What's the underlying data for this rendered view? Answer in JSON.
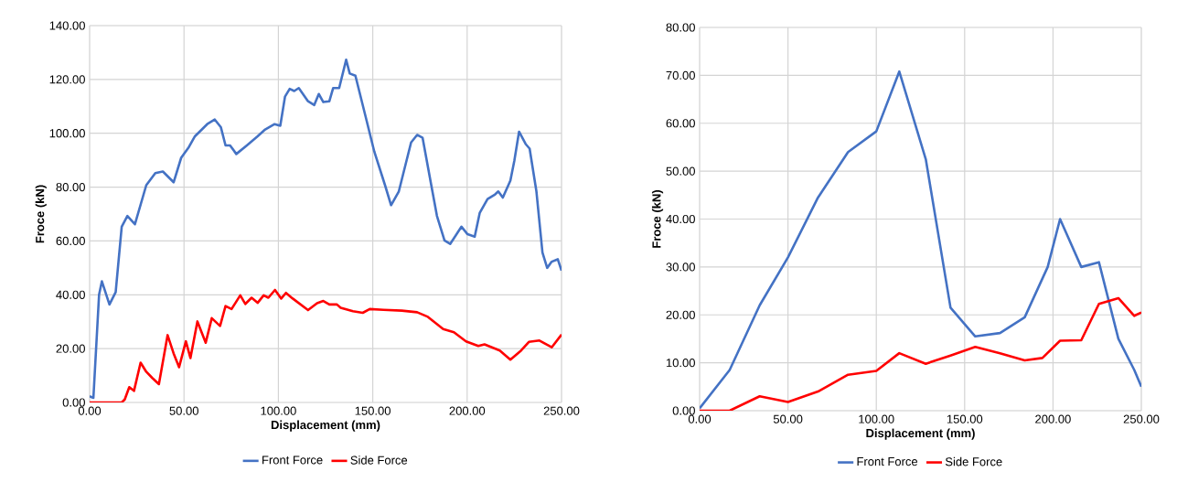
{
  "chart_data": [
    {
      "type": "line",
      "xlabel": "Displacement (mm)",
      "ylabel": "Froce (kN)",
      "grid": true,
      "legend": "bottom",
      "marker": "none",
      "line_style": "solid",
      "xlim": [
        0,
        250
      ],
      "ylim": [
        0,
        140
      ],
      "xticks": [
        {
          "value": 0,
          "label": "0.00"
        },
        {
          "value": 50,
          "label": "50.00"
        },
        {
          "value": 100,
          "label": "100.00"
        },
        {
          "value": 150,
          "label": "150.00"
        },
        {
          "value": 200,
          "label": "200.00"
        },
        {
          "value": 250,
          "label": "250.00"
        }
      ],
      "yticks": [
        {
          "value": 0,
          "label": "0.00"
        },
        {
          "value": 20,
          "label": "20.00"
        },
        {
          "value": 40,
          "label": "40.00"
        },
        {
          "value": 60,
          "label": "60.00"
        },
        {
          "value": 80,
          "label": "80.00"
        },
        {
          "value": 100,
          "label": "100.00"
        },
        {
          "value": 120,
          "label": "120.00"
        },
        {
          "value": 140,
          "label": "140.00"
        }
      ],
      "series": [
        {
          "name": "Front Force",
          "color": "#4472c4",
          "x": [
            0,
            2,
            5,
            6.5,
            10.5,
            13.8,
            17,
            20,
            24,
            30,
            34.8,
            38.8,
            44.5,
            48.5,
            52.6,
            55.8,
            62.3,
            66.3,
            69.5,
            72,
            74.4,
            77.7,
            83.3,
            89,
            93,
            98,
            101,
            103.5,
            106,
            108.4,
            110.8,
            115.7,
            119,
            121.4,
            123.8,
            127,
            129,
            132.2,
            135.9,
            137.8,
            140.8,
            146,
            150.8,
            156.5,
            159.7,
            163.8,
            170.3,
            173.5,
            176.4,
            181.6,
            184,
            188,
            191,
            197,
            200.2,
            204,
            206.7,
            210.8,
            214.8,
            216.5,
            218.9,
            222.9,
            225,
            227.5,
            231,
            233.1,
            236.7,
            239.9,
            242.4,
            244.8,
            248,
            250
          ],
          "values": [
            2.3,
            1.7,
            40,
            45,
            36.4,
            41,
            65.3,
            69.3,
            66.2,
            80.7,
            85.2,
            85.8,
            81.8,
            90.9,
            94.9,
            98.9,
            103.4,
            105.1,
            102.3,
            95.5,
            95.5,
            92.3,
            95.5,
            98.9,
            101.4,
            103.4,
            102.8,
            113.6,
            116.5,
            115.7,
            116.8,
            111.9,
            110.5,
            114.6,
            111.6,
            111.9,
            116.8,
            116.8,
            127.3,
            122.2,
            121.4,
            106.8,
            93.2,
            80.7,
            73.3,
            78.4,
            96.6,
            99.4,
            98.3,
            78.4,
            69.3,
            60.2,
            58.9,
            65.3,
            62.5,
            61.6,
            70.5,
            75.6,
            77.3,
            78.4,
            76.1,
            82.4,
            89.8,
            100.6,
            96,
            94.3,
            78.4,
            55.7,
            50,
            52.3,
            53.2,
            49
          ]
        },
        {
          "name": "Side Force",
          "color": "#ff0000",
          "x": [
            0,
            17,
            18.6,
            21,
            23.5,
            27,
            30,
            33.2,
            36.7,
            41.3,
            44.5,
            47.4,
            51,
            53.4,
            57.1,
            61.5,
            64.7,
            69.1,
            72,
            75.2,
            79.8,
            82.5,
            85.8,
            89,
            92.2,
            94.7,
            98.2,
            101.5,
            104,
            107.6,
            115.7,
            120.5,
            123.8,
            127,
            131,
            133,
            139.5,
            144.7,
            148.4,
            155.7,
            165.4,
            173.5,
            179.2,
            187.3,
            193,
            199.4,
            205.9,
            209.2,
            217.3,
            222.9,
            228.6,
            232.7,
            238.3,
            244.8,
            250
          ],
          "values": [
            0,
            0,
            1.1,
            5.7,
            4.3,
            14.8,
            11.4,
            9.1,
            6.8,
            25,
            18.2,
            13.1,
            22.7,
            16.5,
            30.1,
            22.2,
            31.3,
            28.4,
            35.8,
            34.7,
            39.8,
            36.6,
            38.9,
            37,
            39.8,
            38.9,
            41.8,
            38.6,
            40.7,
            38.6,
            34.3,
            36.9,
            37.7,
            36.4,
            36.4,
            35.2,
            33.9,
            33.3,
            34.7,
            34.4,
            34.1,
            33.5,
            31.8,
            27.3,
            26.1,
            22.7,
            21,
            21.6,
            19.3,
            15.9,
            19.3,
            22.5,
            23,
            20.5,
            25.2
          ]
        }
      ]
    },
    {
      "type": "line",
      "xlabel": "Displacement (mm)",
      "ylabel": "Froce (kN)",
      "grid": true,
      "legend": "bottom",
      "marker": "none",
      "line_style": "solid",
      "xlim": [
        0,
        250
      ],
      "ylim": [
        0,
        80
      ],
      "xticks": [
        {
          "value": 0,
          "label": "0.00"
        },
        {
          "value": 50,
          "label": "50.00"
        },
        {
          "value": 100,
          "label": "100.00"
        },
        {
          "value": 150,
          "label": "150.00"
        },
        {
          "value": 200,
          "label": "200.00"
        },
        {
          "value": 250,
          "label": "250.00"
        }
      ],
      "yticks": [
        {
          "value": 0,
          "label": "0.00"
        },
        {
          "value": 10,
          "label": "10.00"
        },
        {
          "value": 20,
          "label": "20.00"
        },
        {
          "value": 30,
          "label": "30.00"
        },
        {
          "value": 40,
          "label": "40.00"
        },
        {
          "value": 50,
          "label": "50.00"
        },
        {
          "value": 60,
          "label": "60.00"
        },
        {
          "value": 70,
          "label": "70.00"
        },
        {
          "value": 80,
          "label": "80.00"
        }
      ],
      "series": [
        {
          "name": "Front Force",
          "color": "#4472c4",
          "x": [
            0,
            17,
            34,
            50,
            67,
            84,
            100,
            113,
            128,
            142,
            156,
            170,
            184,
            197,
            204,
            216,
            226,
            237,
            246,
            250
          ],
          "values": [
            0.5,
            8.5,
            22,
            32,
            44.5,
            54,
            58.3,
            70.8,
            52.5,
            21.5,
            15.5,
            16.2,
            19.5,
            30,
            40,
            30,
            31,
            15,
            8.5,
            5
          ]
        },
        {
          "name": "Side Force",
          "color": "#ff0000",
          "x": [
            0,
            17,
            34,
            50,
            67,
            84,
            100,
            113,
            128,
            142,
            156,
            170,
            184,
            194,
            204,
            216,
            226,
            237,
            246,
            250
          ],
          "values": [
            0,
            0,
            3,
            1.8,
            4,
            7.5,
            8.3,
            12,
            9.8,
            11.5,
            13.3,
            12,
            10.5,
            11,
            14.6,
            14.7,
            22.3,
            23.5,
            19.8,
            20.5
          ]
        }
      ]
    }
  ]
}
